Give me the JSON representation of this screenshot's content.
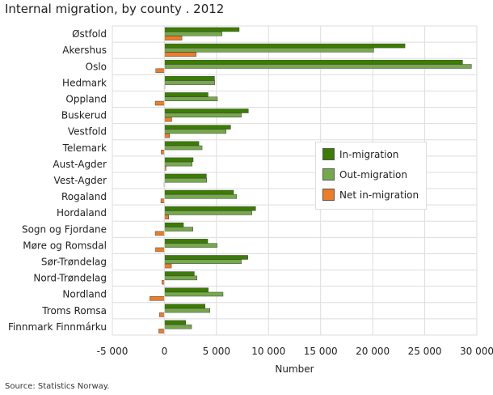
{
  "title": "Internal migration, by county . 2012",
  "source": "Source: Statistics Norway.",
  "chart_data": {
    "type": "bar",
    "orientation": "horizontal",
    "title": "Internal migration, by county . 2012",
    "xlabel": "Number",
    "ylabel": "",
    "xlim": [
      -5000,
      30000
    ],
    "xticks": [
      -5000,
      0,
      5000,
      10000,
      15000,
      20000,
      25000,
      30000
    ],
    "xtick_labels": [
      "-5 000",
      "0",
      "5 000",
      "10 000",
      "15 000",
      "20 000",
      "25 000",
      "30 000"
    ],
    "grid": true,
    "legend_position": "right",
    "categories": [
      "Østfold",
      "Akershus",
      "Oslo",
      "Hedmark",
      "Oppland",
      "Buskerud",
      "Vestfold",
      "Telemark",
      "Aust-Agder",
      "Vest-Agder",
      "Rogaland",
      "Hordaland",
      "Sogn og Fjordane",
      "Møre og Romsdal",
      "Sør-Trøndelag",
      "Nord-Trøndelag",
      "Nordland",
      "Troms Romsa",
      "Finnmark Finnmárku"
    ],
    "series": [
      {
        "name": "In-migration",
        "color": "#3a7d00",
        "values": [
          7180,
          23100,
          28630,
          4810,
          4190,
          8060,
          6360,
          3310,
          2760,
          4030,
          6640,
          8760,
          1830,
          4160,
          8010,
          2870,
          4210,
          3900,
          2040
        ]
      },
      {
        "name": "Out-migration",
        "color": "#76a94b",
        "values": [
          5530,
          20100,
          29480,
          4830,
          5090,
          7390,
          5920,
          3620,
          2660,
          4060,
          6930,
          8400,
          2740,
          5060,
          7390,
          3130,
          5630,
          4370,
          2610
        ]
      },
      {
        "name": "Net in-migration",
        "color": "#ed7d27",
        "values": [
          1680,
          3050,
          -830,
          -20,
          -880,
          700,
          490,
          -310,
          150,
          -30,
          -340,
          410,
          -880,
          -850,
          670,
          -230,
          -1400,
          -470,
          -540
        ]
      }
    ]
  }
}
